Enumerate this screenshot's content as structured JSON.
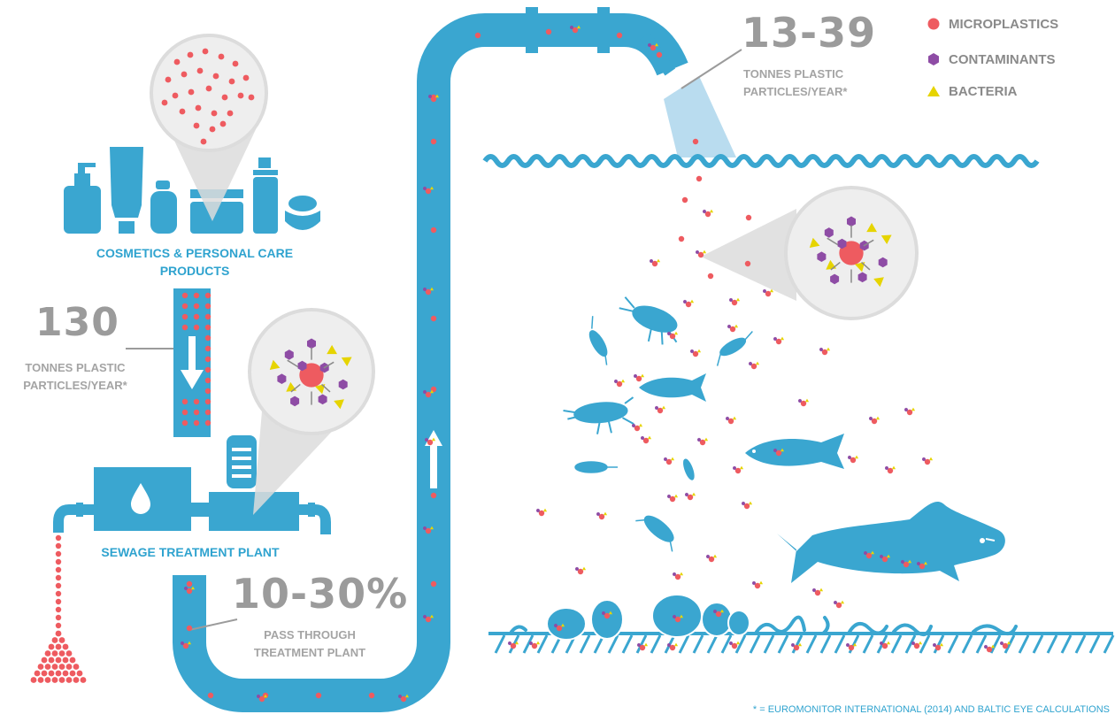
{
  "colors": {
    "pipe": "#3aa6d0",
    "water": "#3aa6d0",
    "microplastic": "#ee5b60",
    "contaminant": "#8e4ca5",
    "bacteria": "#e6d400",
    "label_blue": "#2fa3cf",
    "label_grey": "#a4a4a4"
  },
  "legend": [
    {
      "label": "MICROPLASTICS",
      "shape": "circle",
      "color": "#ee5b60"
    },
    {
      "label": "CONTAMINANTS",
      "shape": "hexagon",
      "color": "#8e4ca5"
    },
    {
      "label": "BACTERIA",
      "shape": "triangle",
      "color": "#e6d400"
    }
  ],
  "cosmetics": {
    "label_line1": "COSMETICS & PERSONAL CARE",
    "label_line2": "PRODUCTS"
  },
  "stat_130": {
    "value": "130",
    "line1": "TONNES PLASTIC",
    "line2": "PARTICLES/YEAR*"
  },
  "sewage": {
    "label": "SEWAGE TREATMENT PLANT"
  },
  "stat_pass": {
    "value": "10-30%",
    "line1": "PASS THROUGH",
    "line2": "TREATMENT PLANT"
  },
  "stat_sea": {
    "value": "13-39",
    "line1": "TONNES PLASTIC",
    "line2": "PARTICLES/YEAR*"
  },
  "footnote": "* = EUROMONITOR INTERNATIONAL (2014) AND BALTIC EYE CALCULATIONS"
}
